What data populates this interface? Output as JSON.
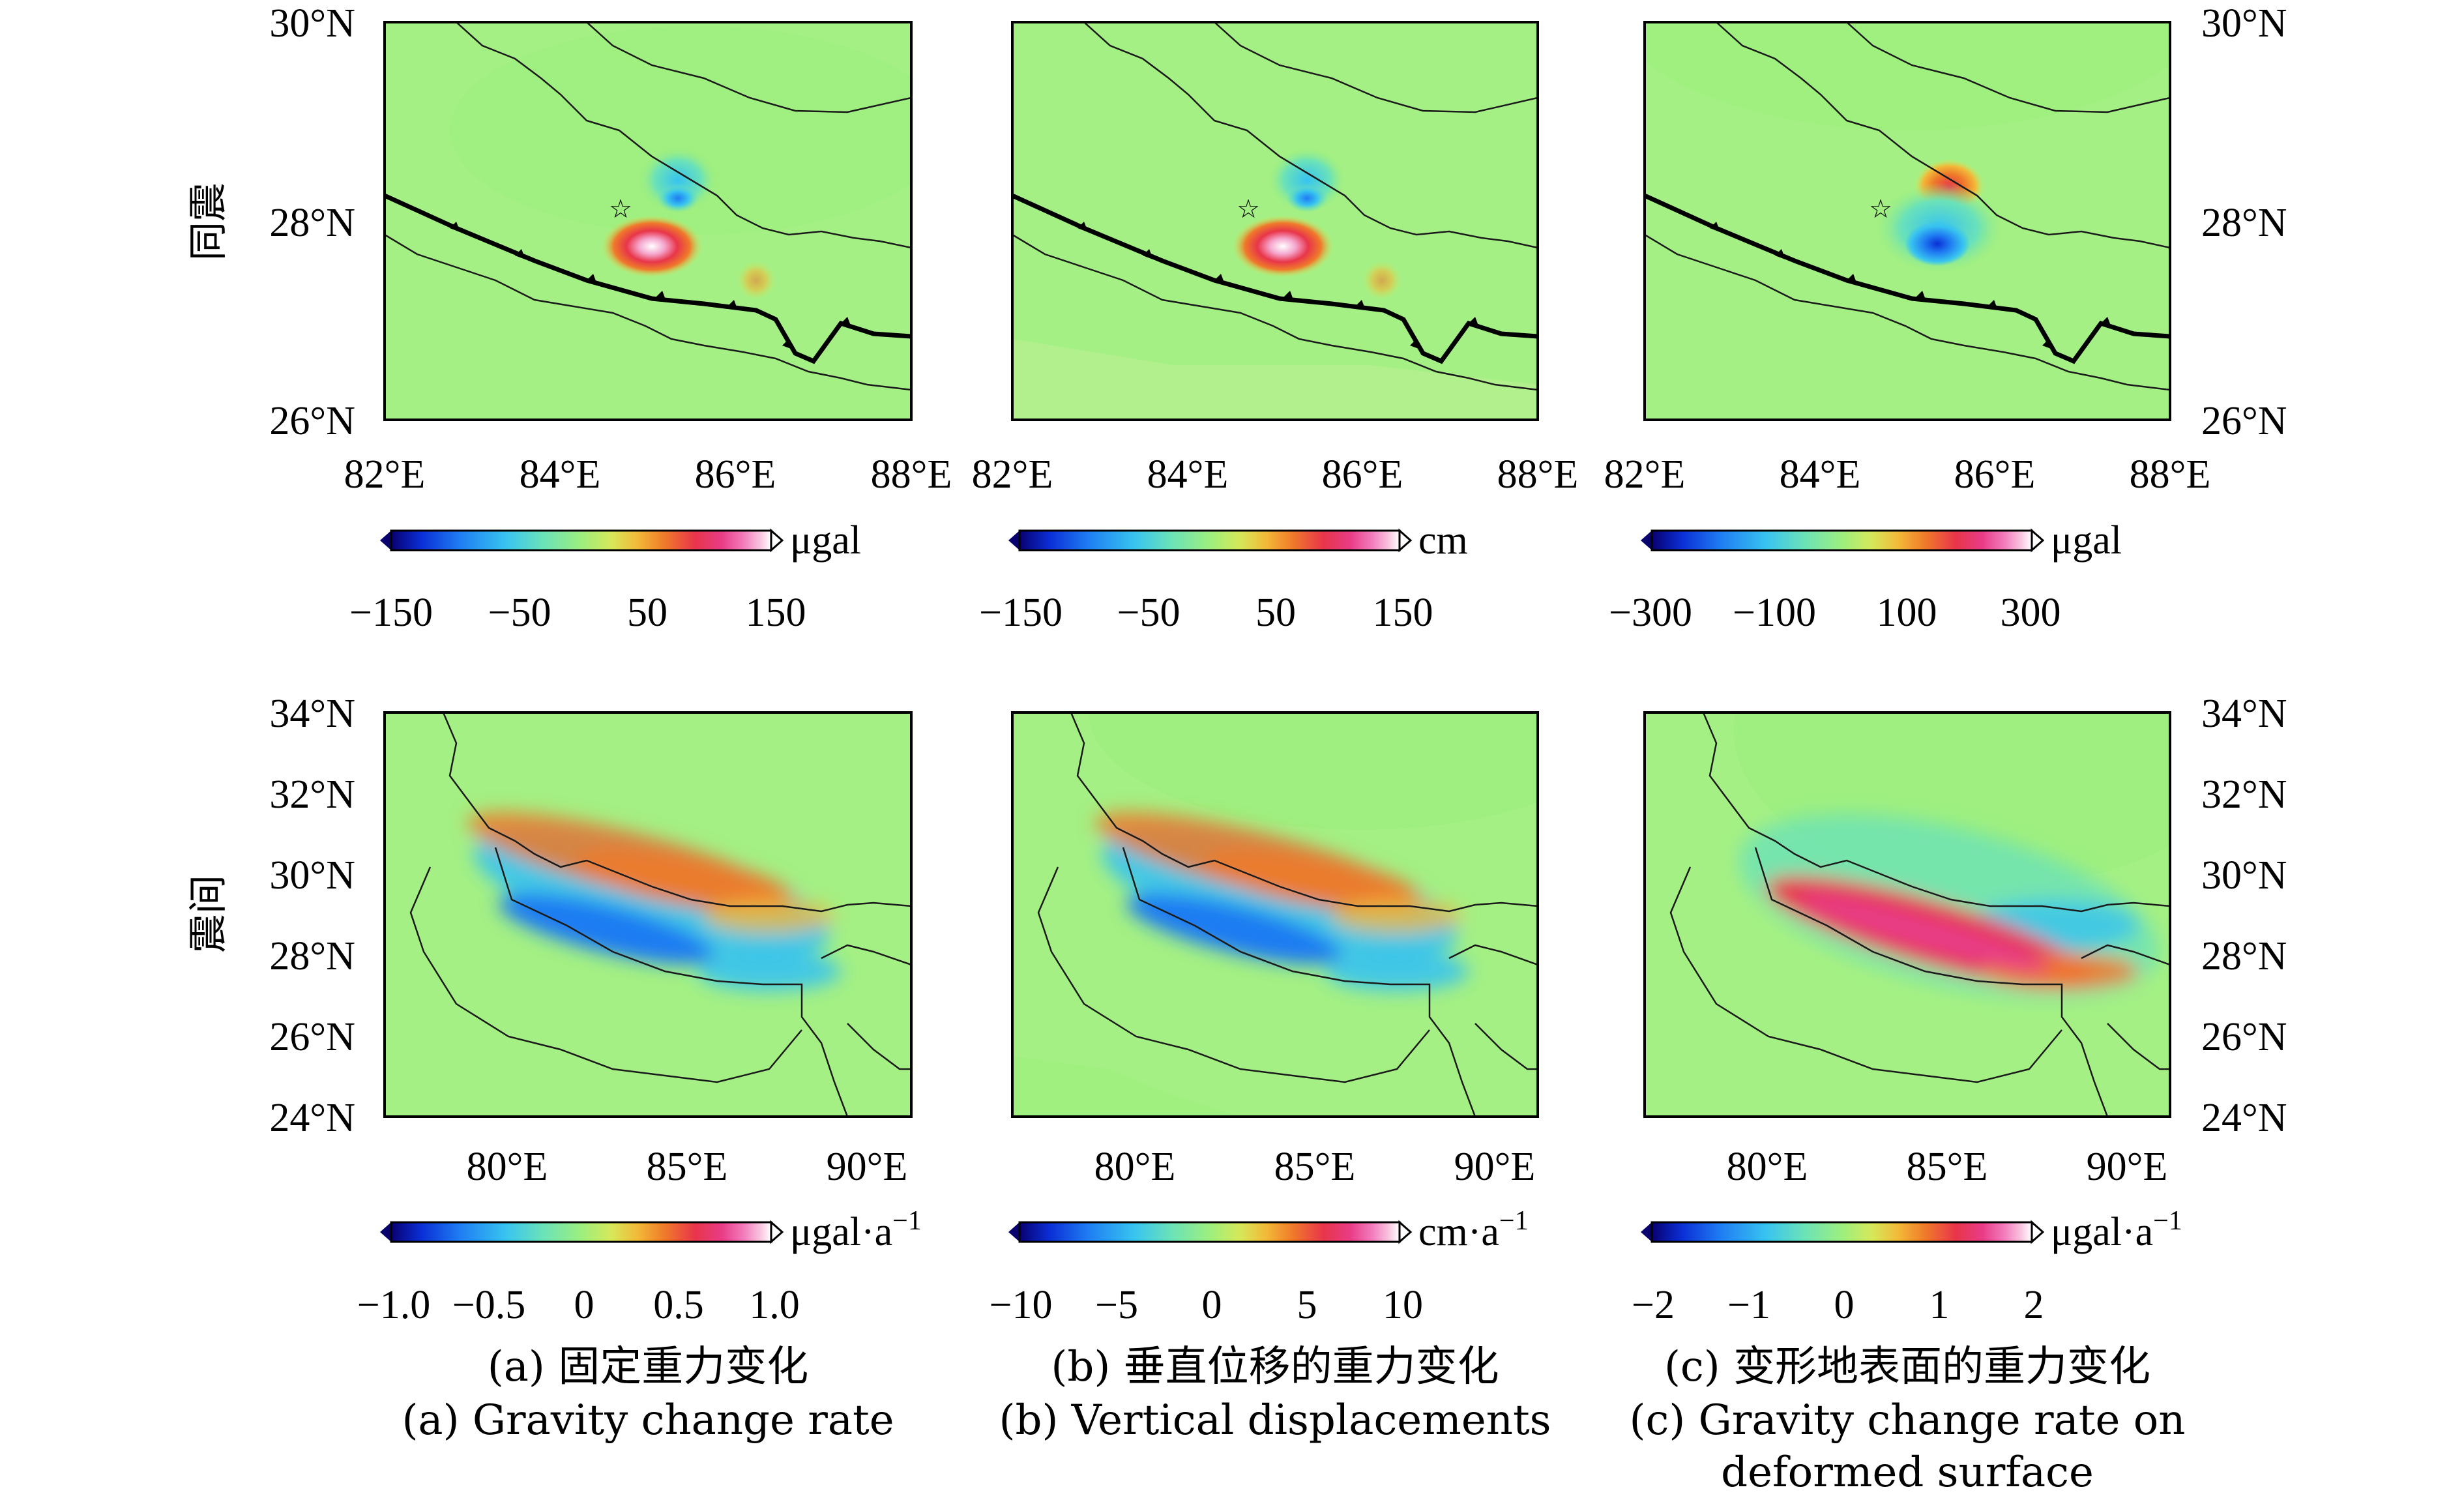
{
  "rows": [
    {
      "id": "coseismic",
      "label": "同震"
    },
    {
      "id": "interseismic",
      "label": "震间"
    }
  ],
  "top_axes": {
    "y_ticks": [
      "30°N",
      "28°N",
      "26°N"
    ],
    "x_ticks": [
      "82°E",
      "84°E",
      "86°E",
      "88°E"
    ]
  },
  "bottom_axes": {
    "y_ticks": [
      "34°N",
      "32°N",
      "30°N",
      "28°N",
      "26°N",
      "24°N"
    ],
    "x_ticks": [
      "80°E",
      "85°E",
      "90°E"
    ]
  },
  "panels": [
    {
      "id": "a",
      "caption_cn": "(a) 固定重力变化",
      "caption_en": "(a) Gravity change rate",
      "caption_en2": "",
      "top_colorbar": {
        "unit": "μgal",
        "ticks": [
          "−150",
          "−50",
          "50",
          "150"
        ]
      },
      "bottom_colorbar": {
        "unit": "μgal·a",
        "unit_sup": "−1",
        "ticks": [
          "−1.0",
          "−0.5",
          "0",
          "0.5",
          "1.0"
        ]
      }
    },
    {
      "id": "b",
      "caption_cn": "(b) 垂直位移的重力变化",
      "caption_en": "(b) Vertical displacements",
      "caption_en2": "",
      "top_colorbar": {
        "unit": "cm",
        "ticks": [
          "−150",
          "−50",
          "50",
          "150"
        ]
      },
      "bottom_colorbar": {
        "unit": "cm·a",
        "unit_sup": "−1",
        "ticks": [
          "−10",
          "−5",
          "0",
          "5",
          "10"
        ]
      }
    },
    {
      "id": "c",
      "caption_cn": "(c) 变形地表面的重力变化",
      "caption_en": "(c) Gravity change rate on",
      "caption_en2": "deformed surface",
      "top_colorbar": {
        "unit": "μgal",
        "ticks": [
          "−300",
          "−100",
          "100",
          "300"
        ]
      },
      "bottom_colorbar": {
        "unit": "μgal·a",
        "unit_sup": "−1",
        "ticks": [
          "−2",
          "−1",
          "0",
          "1",
          "2"
        ]
      }
    }
  ],
  "colors": {
    "background_field": "#a4f084",
    "colormap": [
      "#08006e",
      "#0a2fd6",
      "#1f7cf2",
      "#37c3f0",
      "#6be2b8",
      "#9cef7e",
      "#d6e85a",
      "#f2b838",
      "#ef7a2a",
      "#e8354a",
      "#e83c86",
      "#f27fbe",
      "#f8c2de",
      "#ffffff"
    ]
  }
}
